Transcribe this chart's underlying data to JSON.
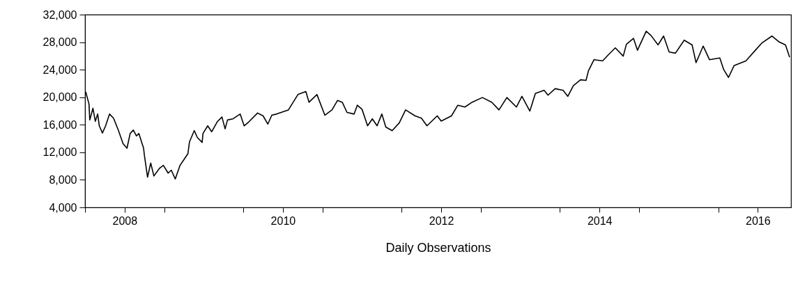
{
  "chart_data": {
    "type": "line",
    "xlabel": "Daily Observations",
    "x": [
      2008.01,
      2008.05,
      2008.06,
      2008.1,
      2008.13,
      2008.16,
      2008.18,
      2008.22,
      2008.26,
      2008.31,
      2008.36,
      2008.42,
      2008.48,
      2008.53,
      2008.57,
      2008.61,
      2008.65,
      2008.68,
      2008.74,
      2008.75,
      2008.79,
      2008.83,
      2008.87,
      2008.94,
      2008.99,
      2009.05,
      2009.09,
      2009.14,
      2009.2,
      2009.25,
      2009.3,
      2009.32,
      2009.38,
      2009.42,
      2009.48,
      2009.49,
      2009.55,
      2009.6,
      2009.67,
      2009.73,
      2009.77,
      2009.8,
      2009.87,
      2009.96,
      2010.01,
      2010.07,
      2010.18,
      2010.25,
      2010.31,
      2010.36,
      2010.42,
      2010.57,
      2010.69,
      2010.79,
      2010.83,
      2010.93,
      2011.03,
      2011.12,
      2011.19,
      2011.25,
      2011.31,
      2011.4,
      2011.44,
      2011.5,
      2011.57,
      2011.63,
      2011.69,
      2011.75,
      2011.8,
      2011.88,
      2011.97,
      2012.05,
      2012.17,
      2012.25,
      2012.32,
      2012.45,
      2012.5,
      2012.63,
      2012.71,
      2012.8,
      2012.89,
      2013.02,
      2013.14,
      2013.23,
      2013.33,
      2013.45,
      2013.52,
      2013.62,
      2013.69,
      2013.8,
      2013.85,
      2013.94,
      2014.04,
      2014.1,
      2014.17,
      2014.26,
      2014.33,
      2014.36,
      2014.43,
      2014.54,
      2014.61,
      2014.7,
      2014.8,
      2014.84,
      2014.93,
      2014.98,
      2015.09,
      2015.15,
      2015.24,
      2015.31,
      2015.38,
      2015.46,
      2015.57,
      2015.67,
      2015.72,
      2015.81,
      2015.89,
      2016.02,
      2016.07,
      2016.13,
      2016.2,
      2016.35,
      2016.47,
      2016.55,
      2016.68,
      2016.77,
      2016.85,
      2016.9
    ],
    "series": [
      {
        "color": "#000000",
        "values": [
          20730,
          19020,
          16700,
          18400,
          16500,
          17560,
          15850,
          14810,
          15850,
          17560,
          16960,
          15240,
          13270,
          12590,
          14730,
          15240,
          14380,
          14730,
          12590,
          11560,
          8390,
          10440,
          8560,
          9670,
          10100,
          8980,
          9410,
          8130,
          10100,
          10950,
          11810,
          13530,
          15150,
          14130,
          13440,
          14730,
          15850,
          14990,
          16430,
          17130,
          15410,
          16700,
          16870,
          17560,
          15850,
          16430,
          17710,
          17290,
          16100,
          17390,
          17560,
          18160,
          20390,
          20820,
          19270,
          20390,
          17390,
          18160,
          19530,
          19270,
          17800,
          17560,
          18840,
          18240,
          15850,
          16870,
          15850,
          17560,
          15670,
          15150,
          16270,
          18160,
          17290,
          16960,
          15850,
          17290,
          16530,
          17290,
          18840,
          18580,
          19270,
          19960,
          19270,
          18160,
          19960,
          18580,
          20130,
          17990,
          20560,
          21000,
          20300,
          21250,
          21000,
          20130,
          21680,
          22540,
          22450,
          23820,
          25450,
          25280,
          26140,
          27170,
          25970,
          27690,
          28550,
          26830,
          29580,
          28980,
          27600,
          28890,
          26570,
          26400,
          28290,
          27600,
          25020,
          27430,
          25450,
          25710,
          24000,
          22880,
          24590,
          25280,
          26830,
          27860,
          28890,
          28030,
          27600,
          25880
        ]
      }
    ],
    "xlim": [
      2008,
      2016.92
    ],
    "xticks": [
      {
        "value": 2008,
        "label": null
      },
      {
        "value": 2008.5,
        "label": "2008"
      },
      {
        "value": 2009,
        "label": null
      },
      {
        "value": 2010,
        "label": null
      },
      {
        "value": 2010.5,
        "label": "2010"
      },
      {
        "value": 2011,
        "label": null
      },
      {
        "value": 2012,
        "label": null
      },
      {
        "value": 2012.5,
        "label": "2012"
      },
      {
        "value": 2013,
        "label": null
      },
      {
        "value": 2014,
        "label": null
      },
      {
        "value": 2014.5,
        "label": "2014"
      },
      {
        "value": 2015,
        "label": null
      },
      {
        "value": 2016,
        "label": null
      },
      {
        "value": 2016.5,
        "label": "2016"
      }
    ],
    "ylim": [
      4000,
      32000
    ],
    "yticks": [
      {
        "value": 4000,
        "label": "4,000"
      },
      {
        "value": 8000,
        "label": "8,000"
      },
      {
        "value": 12000,
        "label": "12,000"
      },
      {
        "value": 16000,
        "label": "16,000"
      },
      {
        "value": 20000,
        "label": "20,000"
      },
      {
        "value": 24000,
        "label": "24,000"
      },
      {
        "value": 28000,
        "label": "28,000"
      },
      {
        "value": 32000,
        "label": "32,000"
      }
    ],
    "grid": false,
    "marker": "none",
    "line_style": "solid"
  }
}
